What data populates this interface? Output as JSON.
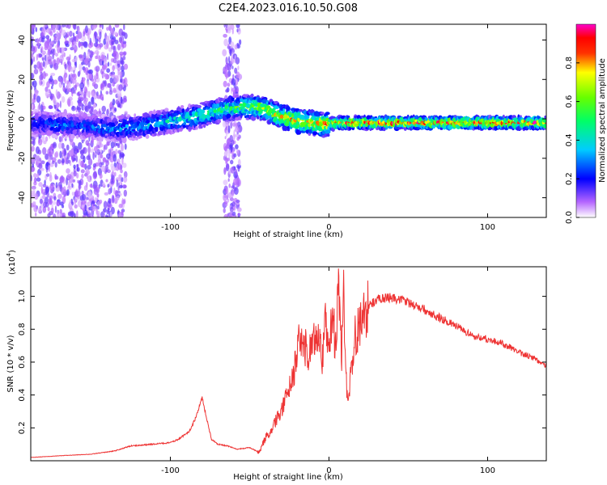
{
  "title": "C2E4.2023.016.10.50.G08",
  "chart_data": [
    {
      "type": "heatmap",
      "xlabel": "Height of straight line (km)",
      "ylabel": "Frequency (Hz)",
      "xlim": [
        -188,
        137
      ],
      "ylim": [
        -50,
        48
      ],
      "xticks": [
        -100,
        0,
        100
      ],
      "yticks": [
        -40,
        -20,
        0,
        20,
        40
      ],
      "colorbar": {
        "label": "Normalized spectral amplitude",
        "range": [
          0,
          1
        ],
        "ticks": [
          0.0,
          0.2,
          0.4,
          0.6,
          0.8
        ]
      },
      "ridge": {
        "x": [
          -188,
          -170,
          -150,
          -135,
          -120,
          -100,
          -85,
          -75,
          -65,
          -55,
          -45,
          -38,
          -30,
          -20,
          -10,
          -3,
          5,
          20,
          40,
          60,
          80,
          100,
          120,
          137
        ],
        "y": [
          -2,
          -3,
          -4,
          -5,
          -4,
          -1,
          1,
          3,
          5,
          6,
          6,
          4,
          1,
          -1,
          -2,
          -3,
          -2,
          -2,
          -2,
          -2,
          -2,
          -2,
          -2,
          -2
        ],
        "amplitude": [
          0.25,
          0.3,
          0.3,
          0.35,
          0.4,
          0.45,
          0.5,
          0.55,
          0.55,
          0.6,
          0.7,
          0.75,
          0.8,
          0.85,
          0.85,
          0.9,
          0.95,
          0.95,
          0.95,
          0.95,
          0.95,
          0.95,
          0.95,
          0.95
        ]
      }
    },
    {
      "type": "line",
      "xlabel": "Height of straight line (km)",
      "ylabel": "SNR (10 * v/v)",
      "yscale_label": "(x10",
      "yscale_exp": "4",
      "yscale_close": ")",
      "xlim": [
        -188,
        137
      ],
      "ylim": [
        0,
        1.18
      ],
      "xticks": [
        -100,
        0,
        100
      ],
      "yticks": [
        0.2,
        0.4,
        0.6,
        0.8,
        1.0
      ],
      "series": [
        {
          "color": "#ee3333",
          "x": [
            -188,
            -170,
            -150,
            -135,
            -125,
            -112,
            -100,
            -95,
            -88,
            -84,
            -80,
            -77,
            -74,
            -70,
            -64,
            -58,
            -50,
            -44,
            -40,
            -36,
            -33,
            -30,
            -27,
            -24,
            -22,
            -20,
            -16,
            -13,
            -10,
            -8,
            -6,
            -4,
            -2,
            0,
            2,
            4,
            6,
            8,
            9,
            10,
            12,
            16,
            20,
            25,
            30,
            35,
            40,
            45,
            50,
            60,
            70,
            80,
            90,
            100,
            110,
            120,
            130,
            137
          ],
          "y": [
            0.02,
            0.03,
            0.04,
            0.06,
            0.09,
            0.1,
            0.11,
            0.13,
            0.18,
            0.26,
            0.38,
            0.25,
            0.13,
            0.1,
            0.09,
            0.07,
            0.08,
            0.05,
            0.14,
            0.18,
            0.25,
            0.32,
            0.38,
            0.46,
            0.52,
            0.7,
            0.74,
            0.6,
            0.82,
            0.72,
            0.78,
            0.62,
            0.85,
            0.65,
            0.93,
            0.7,
            1.05,
            0.62,
            1.15,
            0.6,
            0.35,
            0.75,
            0.85,
            0.94,
            0.98,
            0.99,
            0.99,
            0.98,
            0.96,
            0.92,
            0.87,
            0.82,
            0.76,
            0.74,
            0.71,
            0.66,
            0.62,
            0.58
          ]
        }
      ]
    }
  ]
}
